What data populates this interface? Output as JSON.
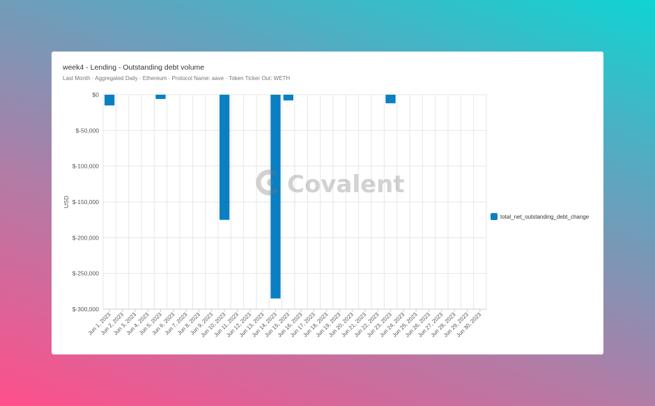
{
  "card": {
    "title": "week4 - Lending - Outstanding debt volume",
    "subtitle": "Last Month · Aggregated Daily · Ethereum · Protocol Name: aave · Token Ticker Out: WETH"
  },
  "watermark": {
    "text": "Covalent",
    "icon": "covalent-logo-icon"
  },
  "colors": {
    "bar": "#0a7fc2",
    "grid": "#e6e6e6",
    "axis": "#cccccc",
    "text": "#555555"
  },
  "chart_data": {
    "type": "bar",
    "ylabel": "USD",
    "xlabel": "",
    "ylim": [
      -300000,
      0
    ],
    "yticks": [
      0,
      -50000,
      -100000,
      -150000,
      -200000,
      -250000,
      -300000
    ],
    "ytick_labels": [
      "$0",
      "$-50,000",
      "$-100,000",
      "$-150,000",
      "$-200,000",
      "$-250,000",
      "$-300,000"
    ],
    "grid": true,
    "legend_position": "right",
    "categories": [
      "Jun 1, 2023",
      "Jun 2, 2023",
      "Jun 3, 2023",
      "Jun 4, 2023",
      "Jun 5, 2023",
      "Jun 6, 2023",
      "Jun 7, 2023",
      "Jun 8, 2023",
      "Jun 9, 2023",
      "Jun 10, 2023",
      "Jun 11, 2023",
      "Jun 12, 2023",
      "Jun 13, 2023",
      "Jun 14, 2023",
      "Jun 15, 2023",
      "Jun 16, 2023",
      "Jun 17, 2023",
      "Jun 18, 2023",
      "Jun 19, 2023",
      "Jun 20, 2023",
      "Jun 21, 2023",
      "Jun 22, 2023",
      "Jun 23, 2023",
      "Jun 24, 2023",
      "Jun 25, 2023",
      "Jun 26, 2023",
      "Jun 27, 2023",
      "Jun 28, 2023",
      "Jun 29, 2023",
      "Jun 30, 2023"
    ],
    "series": [
      {
        "name": "total_net_outstanding_debt_change",
        "bars": [
          {
            "category": "Jun 1, 2023",
            "value": -15000
          },
          {
            "category": "Jun 5, 2023",
            "value": -6000
          },
          {
            "category": "Jun 10, 2023",
            "value": -175000
          },
          {
            "category": "Jun 14, 2023",
            "value": -285000
          },
          {
            "category": "Jun 15, 2023",
            "value": -8000
          },
          {
            "category": "Jun 23, 2023",
            "value": -12000
          }
        ]
      }
    ]
  }
}
